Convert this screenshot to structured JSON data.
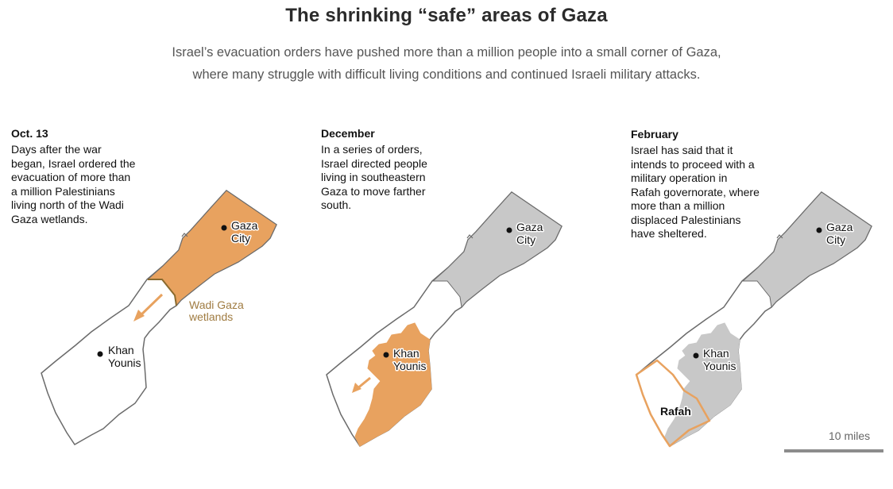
{
  "title": "The shrinking “safe” areas of Gaza",
  "subtitle_line1": "Israel’s evacuation orders have pushed more than a million people into a small corner of Gaza,",
  "subtitle_line2": "where many struggle with difficult living conditions and continued Israeli military attacks.",
  "colors": {
    "evacuated": "#e8a25f",
    "previously_evacuated": "#c8c8c8",
    "outline": "#6b6b6b",
    "wetlands_line": "#8a6a2e",
    "wetlands_label": "#a07c42",
    "rafah_outline": "#e8a25f"
  },
  "panels": [
    {
      "heading": "Oct. 13",
      "lines": [
        "Days after the war",
        "began, Israel ordered the",
        "evacuation of more than",
        "a million Palestinians",
        "living north of the Wadi",
        "Gaza wetlands."
      ]
    },
    {
      "heading": "December",
      "lines": [
        "In a series of orders,",
        "Israel directed people",
        "living in southeastern",
        "Gaza to move farther",
        "south."
      ]
    },
    {
      "heading": "February",
      "lines": [
        "Israel has said that it",
        "intends to proceed with a",
        "military operation in",
        "Rafah governorate, where",
        "more than a million",
        "displaced Palestinians",
        "have sheltered."
      ]
    }
  ],
  "map_labels": {
    "gaza_city_1": "Gaza",
    "gaza_city_2": "City",
    "khan_younis_1": "Khan",
    "khan_younis_2": "Younis",
    "wetlands_1": "Wadi Gaza",
    "wetlands_2": "wetlands",
    "rafah": "Rafah"
  },
  "scale": {
    "label": "10 miles"
  }
}
